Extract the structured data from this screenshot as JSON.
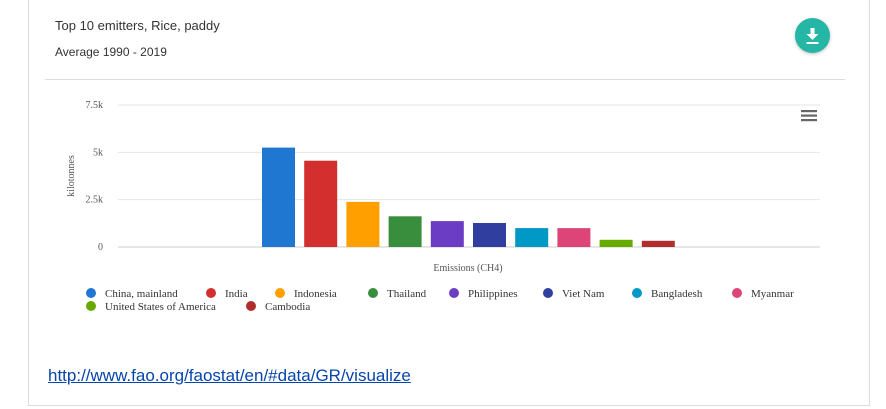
{
  "header": {
    "title": "Top 10 emitters, Rice, paddy",
    "subtitle": "Average 1990 - 2019",
    "download_icon": "download-icon"
  },
  "menu_icon": "hamburger-menu-icon",
  "chart_data": {
    "type": "bar",
    "xlabel": "Emissions (CH4)",
    "ylabel": "kilotonnes",
    "ylim": [
      0,
      7500
    ],
    "yticks": [
      "0",
      "2.5k",
      "5k",
      "7.5k"
    ],
    "grid": true,
    "legend_placement": "bottom",
    "series": [
      {
        "name": "China, mainland",
        "value": 5250,
        "color": "#1f77d2"
      },
      {
        "name": "India",
        "value": 4560,
        "color": "#d32f2f"
      },
      {
        "name": "Indonesia",
        "value": 2380,
        "color": "#ffa000"
      },
      {
        "name": "Thailand",
        "value": 1620,
        "color": "#388e3c"
      },
      {
        "name": "Philippines",
        "value": 1370,
        "color": "#6a3dc4"
      },
      {
        "name": "Viet Nam",
        "value": 1270,
        "color": "#303f9f"
      },
      {
        "name": "Bangladesh",
        "value": 1000,
        "color": "#0099c6"
      },
      {
        "name": "Myanmar",
        "value": 1000,
        "color": "#dd4477"
      },
      {
        "name": "United States of America",
        "value": 380,
        "color": "#66aa00"
      },
      {
        "name": "Cambodia",
        "value": 330,
        "color": "#b22e2e"
      }
    ]
  },
  "footer": {
    "link_text": "http://www.fao.org/faostat/en/#data/GR/visualize"
  }
}
